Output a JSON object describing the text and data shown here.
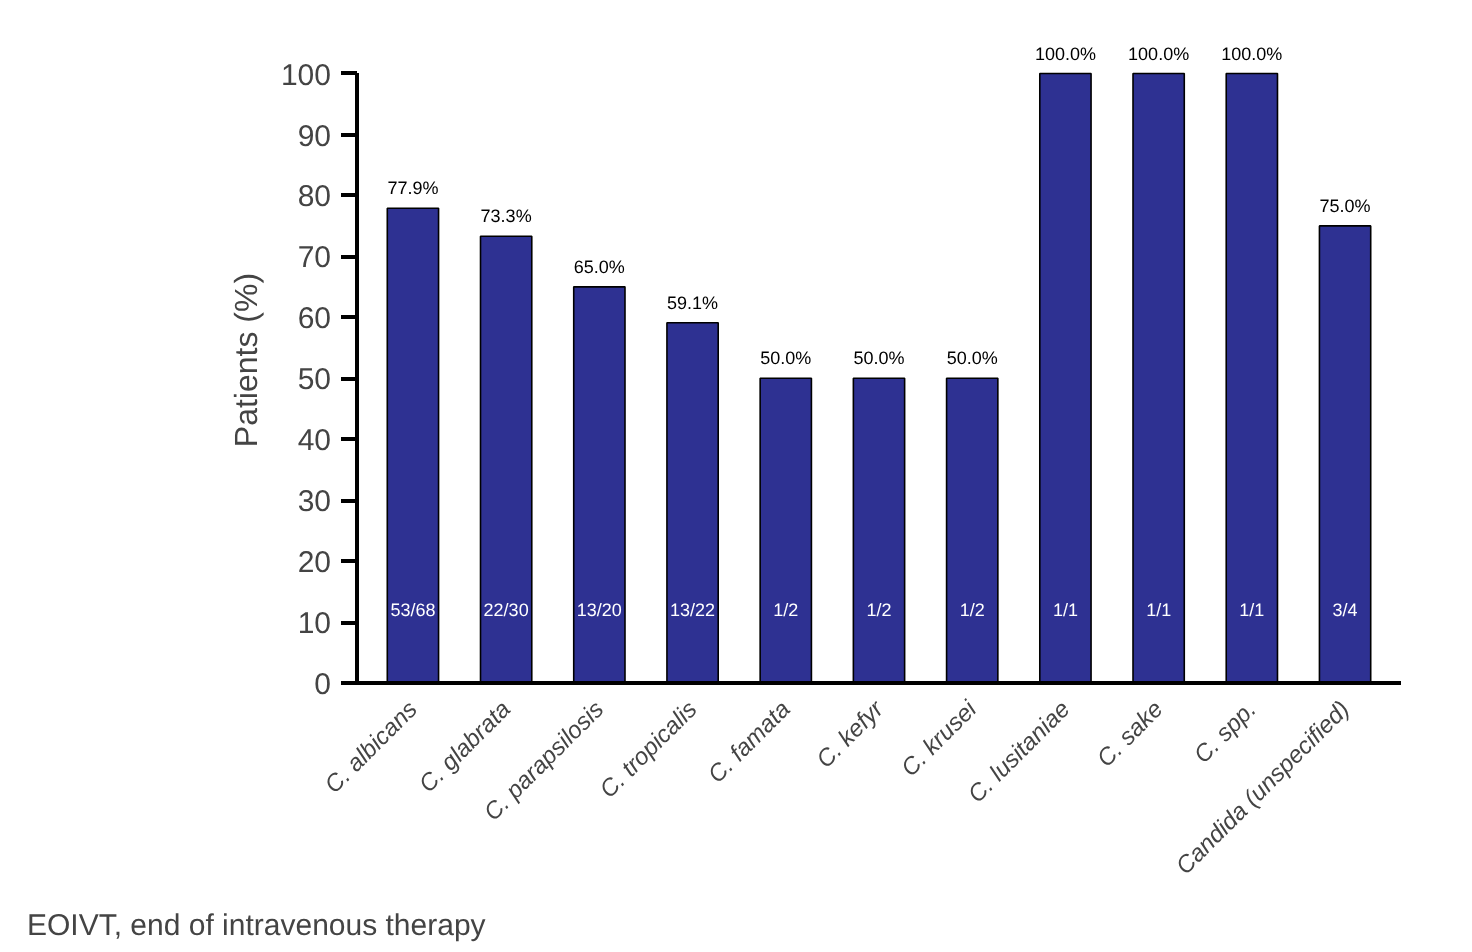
{
  "chart_data": {
    "type": "bar",
    "ylabel": "Patients (%)",
    "categories": [
      "C. albicans",
      "C. glabrata",
      "C. parapsilosis",
      "C. tropicalis",
      "C. famata",
      "C. kefyr",
      "C. krusei",
      "C. lusitaniae",
      "C. sake",
      "C. spp.",
      "Candida (unspecified)"
    ],
    "values": [
      77.9,
      73.3,
      65.0,
      59.1,
      50.0,
      50.0,
      50.0,
      100.0,
      100.0,
      100.0,
      75.0
    ],
    "value_labels": [
      "77.9%",
      "73.3%",
      "65.0%",
      "59.1%",
      "50.0%",
      "50.0%",
      "50.0%",
      "100.0%",
      "100.0%",
      "100.0%",
      "75.0%"
    ],
    "color": "#2e3192",
    "ylim": [
      0,
      100
    ],
    "yticks": [
      0,
      10,
      20,
      30,
      40,
      50,
      60,
      70,
      80,
      90,
      100
    ],
    "grid": false,
    "annotations": [
      "53/68",
      "22/30",
      "13/20",
      "13/22",
      "1/2",
      "1/2",
      "1/2",
      "1/1",
      "1/1",
      "1/1",
      "3/4",
      "EOIVT, end of intravenous therapy"
    ]
  }
}
